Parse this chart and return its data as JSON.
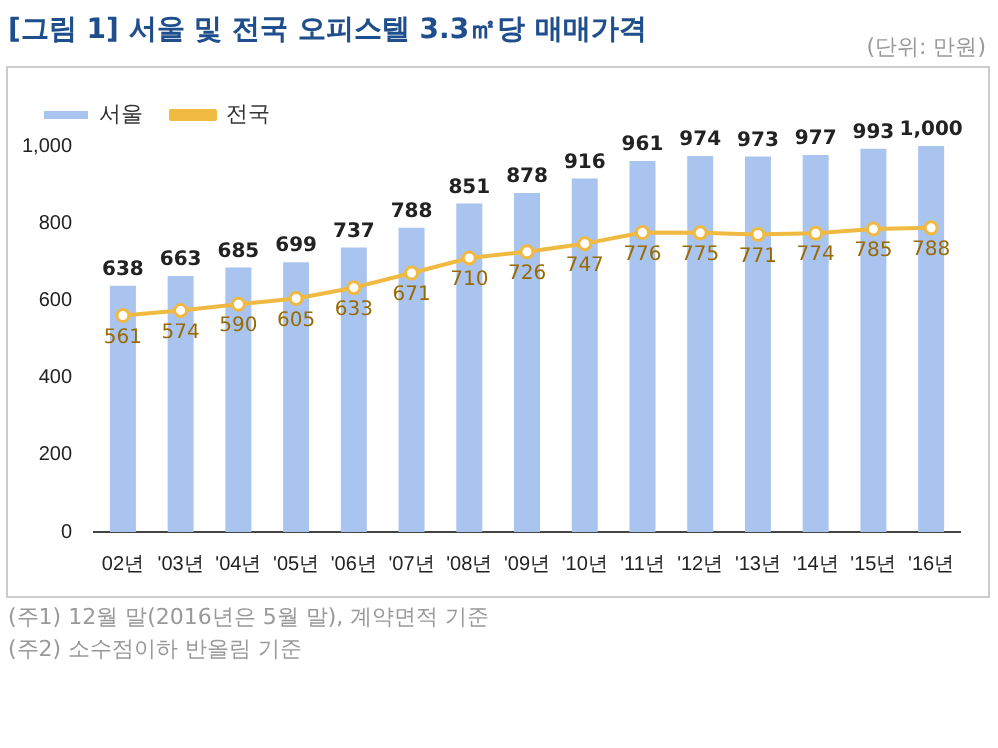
{
  "chart_data": {
    "type": "bar",
    "title": "[그림 1] 서울 및 전국 오피스텔 3.3㎡당 매매가격",
    "categories": [
      "02년",
      "'03년",
      "'04년",
      "'05년",
      "'06년",
      "'07년",
      "'08년",
      "'09년",
      "'10년",
      "'11년",
      "'12년",
      "'13년",
      "'14년",
      "'15년",
      "'16년"
    ],
    "series": [
      {
        "name": "서울",
        "color": "#a9c4ee",
        "values": [
          638,
          663,
          685,
          699,
          737,
          788,
          851,
          878,
          916,
          961,
          974,
          973,
          977,
          993,
          1000
        ],
        "value_labels": [
          "638",
          "663",
          "685",
          "699",
          "737",
          "788",
          "851",
          "878",
          "916",
          "961",
          "974",
          "973",
          "977",
          "993",
          "1,000"
        ]
      },
      {
        "name": "전국",
        "type": "line",
        "color": "#f0b941",
        "marker": "circle",
        "values": [
          561,
          574,
          590,
          605,
          633,
          671,
          710,
          726,
          747,
          776,
          775,
          771,
          774,
          785,
          788
        ]
      }
    ],
    "ylim": [
      0,
      1000
    ],
    "yticks": [
      0,
      200,
      400,
      600,
      800,
      {
        "value": 1000,
        "label": "1,000"
      }
    ],
    "grid": false,
    "legend": "top left",
    "data_labels": true,
    "annotations": [
      "(단위: 만원)",
      "(주1) 12월 말(2016년은 5월 말), 계약면적 기준",
      "(주2) 소수점이하 반올림 기준"
    ]
  }
}
